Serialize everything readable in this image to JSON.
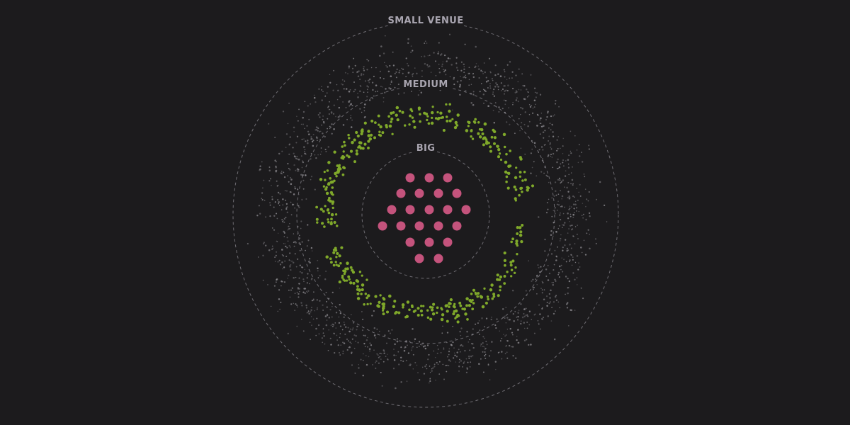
{
  "labels": {
    "small": "SMALL VENUE",
    "medium": "MEDIUM",
    "big": "BIG"
  },
  "colors": {
    "background": "#1c1b1d",
    "ring_line": "#6f6d73",
    "label_text": "#a9a5b0",
    "small_dots": "#8f8d92",
    "medium_dots": "#7fa82a",
    "big_dots": "#c4537c"
  }
}
